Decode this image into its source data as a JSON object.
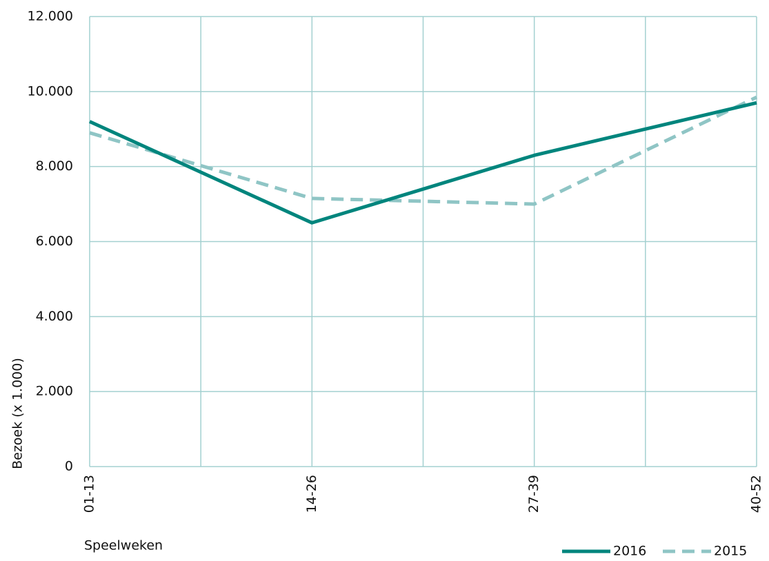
{
  "chart_data": {
    "type": "line",
    "y_label": "Bezoek (x 1.000)",
    "x_label": "Speelweken",
    "categories": [
      "01-13",
      "14-26",
      "27-39",
      "40-52"
    ],
    "series": [
      {
        "name": "2016",
        "color": "#00857d",
        "line_style": "solid",
        "values": [
          9200,
          6500,
          8300,
          9700
        ]
      },
      {
        "name": "2015",
        "color": "#8fc5c5",
        "line_style": "dashed",
        "values": [
          8900,
          7150,
          7000,
          9850
        ]
      }
    ],
    "ylim": [
      0,
      12000
    ],
    "yticks": [
      0,
      {
        "value": 2000,
        "label": "2.000"
      },
      {
        "value": 4000,
        "label": "4.000"
      },
      {
        "value": 6000,
        "label": "6.000"
      },
      {
        "value": 8000,
        "label": "8.000"
      },
      {
        "value": 10000,
        "label": "10.000"
      },
      {
        "value": 12000,
        "label": "12.000"
      }
    ],
    "grid": true,
    "legend": "bottom-right"
  }
}
